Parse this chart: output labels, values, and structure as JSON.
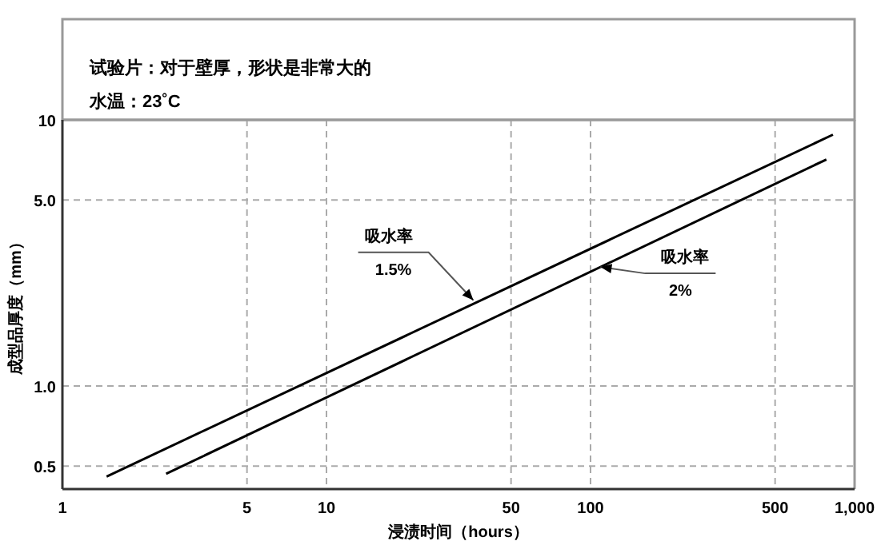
{
  "chart_data": {
    "type": "line",
    "title": "试验片：对于壁厚，形状是非常大的",
    "subtitle": "水温：23˚C",
    "xlabel": "浸渍时间（hours）",
    "ylabel": "成型品厚度（mm）",
    "log": "xy",
    "grid": true,
    "marker": "none",
    "line_style": "solid",
    "xlim": [
      1,
      1000
    ],
    "ylim": [
      0.41,
      10
    ],
    "xticks": [
      1,
      5,
      10,
      50,
      100,
      500,
      {
        "value": 1000,
        "label": "1,000"
      }
    ],
    "yticks": [
      0.5,
      {
        "value": 1,
        "label": "1.0"
      },
      {
        "value": 5,
        "label": "5.0"
      },
      10
    ],
    "series": [
      {
        "color": "#000000",
        "x": [
          1.47,
          828
        ],
        "values": [
          0.457,
          8.8
        ]
      },
      {
        "color": "#000000",
        "x": [
          2.47,
          782
        ],
        "values": [
          0.468,
          7.1
        ]
      }
    ],
    "annotations": [
      {
        "text": "吸水率\n1.5%",
        "x": 36,
        "y": 2.1
      },
      {
        "text": "吸水率\n2%",
        "x": 109,
        "y": 2.8
      }
    ]
  }
}
